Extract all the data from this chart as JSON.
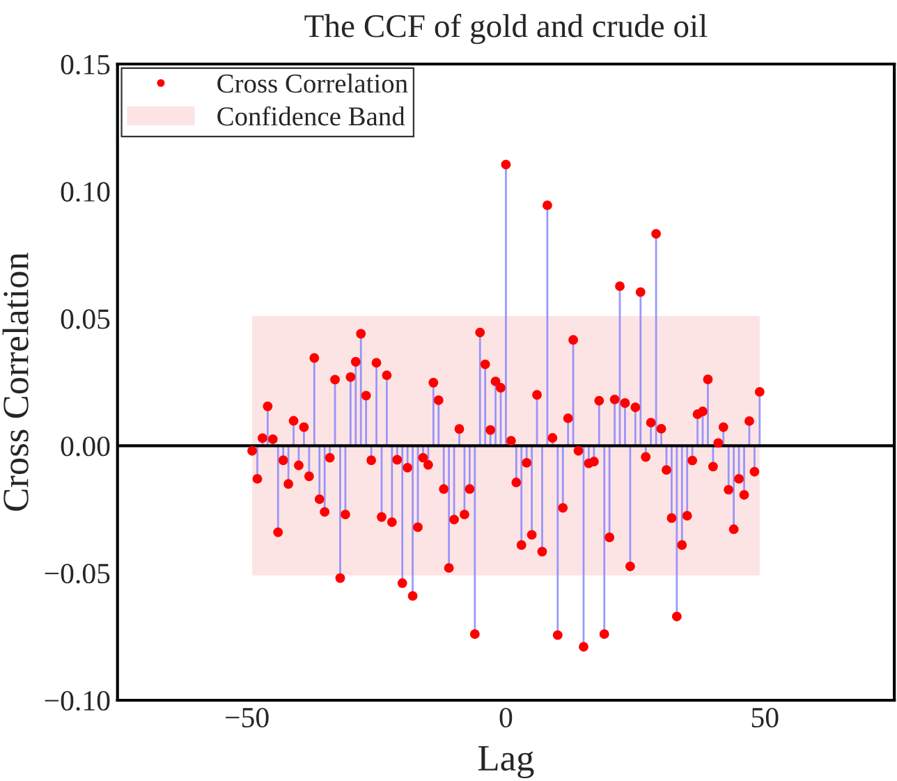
{
  "chart_data": {
    "type": "lollipop",
    "title": "The CCF of gold and crude oil",
    "xlabel": "Lag",
    "ylabel": "Cross Correlation",
    "x": [
      -49,
      -48,
      -47,
      -46,
      -45,
      -44,
      -43,
      -42,
      -41,
      -40,
      -39,
      -38,
      -37,
      -36,
      -35,
      -34,
      -33,
      -32,
      -31,
      -30,
      -29,
      -28,
      -27,
      -26,
      -25,
      -24,
      -23,
      -22,
      -21,
      -20,
      -19,
      -18,
      -17,
      -16,
      -15,
      -14,
      -13,
      -12,
      -11,
      -10,
      -9,
      -8,
      -7,
      -6,
      -5,
      -4,
      -3,
      -2,
      -1,
      0,
      1,
      2,
      3,
      4,
      5,
      6,
      7,
      8,
      9,
      10,
      11,
      12,
      13,
      14,
      15,
      16,
      17,
      18,
      19,
      20,
      21,
      22,
      23,
      24,
      25,
      26,
      27,
      28,
      29,
      30,
      31,
      32,
      33,
      34,
      35,
      36,
      37,
      38,
      39,
      40,
      41,
      42,
      43,
      44,
      45,
      46,
      47,
      48,
      49
    ],
    "series": [
      {
        "name": "Cross Correlation",
        "color": "#ff0000",
        "values": [
          -0.002,
          -0.013,
          0.003,
          0.0155,
          0.0026,
          -0.034,
          -0.0057,
          -0.015,
          0.0098,
          -0.0077,
          0.0073,
          -0.012,
          0.0345,
          -0.021,
          -0.026,
          -0.0047,
          0.026,
          -0.052,
          -0.027,
          0.027,
          0.033,
          0.044,
          0.0197,
          -0.0057,
          0.0326,
          -0.028,
          0.0277,
          -0.03,
          -0.0055,
          -0.054,
          -0.0086,
          -0.059,
          -0.032,
          -0.0047,
          -0.0075,
          0.0248,
          0.0179,
          -0.017,
          -0.048,
          -0.029,
          0.0066,
          -0.027,
          -0.017,
          -0.074,
          0.0445,
          0.032,
          0.0062,
          0.0253,
          0.0228,
          0.1105,
          0.002,
          -0.0144,
          -0.039,
          -0.0067,
          -0.035,
          0.02,
          -0.0416,
          0.0945,
          0.0031,
          -0.0744,
          -0.0244,
          0.0108,
          0.0416,
          -0.002,
          -0.079,
          -0.0069,
          -0.0062,
          0.0177,
          -0.074,
          -0.036,
          0.0182,
          0.0627,
          0.0168,
          -0.0474,
          0.0151,
          0.0604,
          -0.0044,
          0.0091,
          0.0833,
          0.0067,
          -0.0095,
          -0.0284,
          -0.0671,
          -0.039,
          -0.0275,
          -0.0058,
          0.0124,
          0.0135,
          0.0261,
          -0.0082,
          0.0011,
          0.0073,
          -0.0173,
          -0.0328,
          -0.013,
          -0.0193,
          0.0097,
          -0.0102,
          0.0212
        ]
      }
    ],
    "bands": [
      {
        "axis": "y",
        "from": -0.051,
        "to": 0.051,
        "label": "Confidence Band",
        "color": "#fde4e4"
      }
    ],
    "ref_lines": [
      {
        "axis": "y",
        "value": 0,
        "color": "#000000"
      }
    ],
    "xlim": [
      -75,
      75
    ],
    "ylim": [
      -0.1,
      0.15
    ],
    "xticks": [
      {
        "value": -50,
        "label": "−50"
      },
      0,
      50
    ],
    "yticks": [
      {
        "value": -0.1,
        "label": "−0.10"
      },
      {
        "value": -0.05,
        "label": "−0.05"
      },
      {
        "value": 0,
        "label": "0.00"
      },
      {
        "value": 0.05,
        "label": "0.05"
      },
      {
        "value": 0.1,
        "label": "0.10"
      },
      {
        "value": 0.15,
        "label": "0.15"
      }
    ],
    "marker": "circle",
    "legend": "top left",
    "grid": false
  }
}
